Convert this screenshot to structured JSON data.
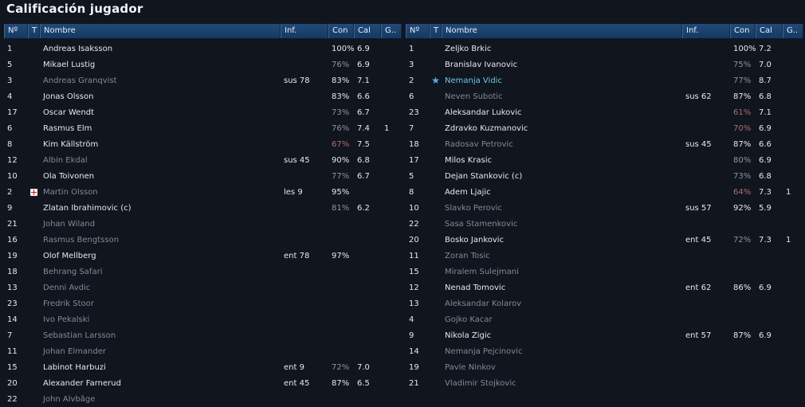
{
  "page": {
    "title": "Calificación jugador"
  },
  "columns": {
    "no": "Nº",
    "t": "T",
    "name": "Nombre",
    "inf": "Inf.",
    "con": "Con",
    "cal": "Cal",
    "g": "G.."
  },
  "colors": {
    "header": "#1c4170",
    "background": "#10151e",
    "active_text": "#e6e9ee",
    "inactive_text": "#838b97",
    "highlight_text": "#6fc7ef",
    "low_condition": "#b06e6e"
  },
  "left_team": {
    "players": [
      {
        "no": "1",
        "icon": "",
        "name": "Andreas Isaksson",
        "inf": "",
        "con": "100%",
        "con_level": "good",
        "cal": "6.9",
        "g": "",
        "active": true
      },
      {
        "no": "5",
        "icon": "",
        "name": "Mikael Lustig",
        "inf": "",
        "con": "76%",
        "con_level": "mid",
        "cal": "6.9",
        "g": "",
        "active": true
      },
      {
        "no": "3",
        "icon": "",
        "name": "Andreas Granqvist",
        "inf": "sus 78",
        "con": "83%",
        "con_level": "good",
        "cal": "7.1",
        "g": "",
        "active": false
      },
      {
        "no": "4",
        "icon": "",
        "name": "Jonas Olsson",
        "inf": "",
        "con": "83%",
        "con_level": "good",
        "cal": "6.6",
        "g": "",
        "active": true
      },
      {
        "no": "17",
        "icon": "",
        "name": "Oscar Wendt",
        "inf": "",
        "con": "73%",
        "con_level": "mid",
        "cal": "6.7",
        "g": "",
        "active": true
      },
      {
        "no": "6",
        "icon": "",
        "name": "Rasmus Elm",
        "inf": "",
        "con": "76%",
        "con_level": "mid",
        "cal": "7.4",
        "g": "1",
        "active": true
      },
      {
        "no": "8",
        "icon": "",
        "name": "Kim Källström",
        "inf": "",
        "con": "67%",
        "con_level": "low",
        "cal": "7.5",
        "g": "",
        "active": true
      },
      {
        "no": "12",
        "icon": "",
        "name": "Albin Ekdal",
        "inf": "sus 45",
        "con": "90%",
        "con_level": "good",
        "cal": "6.8",
        "g": "",
        "active": false
      },
      {
        "no": "10",
        "icon": "",
        "name": "Ola Toivonen",
        "inf": "",
        "con": "77%",
        "con_level": "mid",
        "cal": "6.7",
        "g": "",
        "active": true
      },
      {
        "no": "2",
        "icon": "injury-icon",
        "name": "Martin Olsson",
        "inf": "les 9",
        "con": "95%",
        "con_level": "good",
        "cal": "",
        "g": "",
        "active": false
      },
      {
        "no": "9",
        "icon": "",
        "name": "Zlatan Ibrahimovic (c)",
        "inf": "",
        "con": "81%",
        "con_level": "mid",
        "cal": "6.2",
        "g": "",
        "active": true
      },
      {
        "no": "21",
        "icon": "",
        "name": "Johan Wiland",
        "inf": "",
        "con": "",
        "con_level": "",
        "cal": "",
        "g": "",
        "active": false
      },
      {
        "no": "16",
        "icon": "",
        "name": "Rasmus Bengtsson",
        "inf": "",
        "con": "",
        "con_level": "",
        "cal": "",
        "g": "",
        "active": false
      },
      {
        "no": "19",
        "icon": "",
        "name": "Olof Mellberg",
        "inf": "ent 78",
        "con": "97%",
        "con_level": "good",
        "cal": "",
        "g": "",
        "active": true
      },
      {
        "no": "18",
        "icon": "",
        "name": "Behrang Safari",
        "inf": "",
        "con": "",
        "con_level": "",
        "cal": "",
        "g": "",
        "active": false
      },
      {
        "no": "13",
        "icon": "",
        "name": "Denni Avdic",
        "inf": "",
        "con": "",
        "con_level": "",
        "cal": "",
        "g": "",
        "active": false
      },
      {
        "no": "23",
        "icon": "",
        "name": "Fredrik Stoor",
        "inf": "",
        "con": "",
        "con_level": "",
        "cal": "",
        "g": "",
        "active": false
      },
      {
        "no": "14",
        "icon": "",
        "name": "Ivo Pekalski",
        "inf": "",
        "con": "",
        "con_level": "",
        "cal": "",
        "g": "",
        "active": false
      },
      {
        "no": "7",
        "icon": "",
        "name": "Sebastian Larsson",
        "inf": "",
        "con": "",
        "con_level": "",
        "cal": "",
        "g": "",
        "active": false
      },
      {
        "no": "11",
        "icon": "",
        "name": "Johan Elmander",
        "inf": "",
        "con": "",
        "con_level": "",
        "cal": "",
        "g": "",
        "active": false
      },
      {
        "no": "15",
        "icon": "",
        "name": "Labinot Harbuzi",
        "inf": "ent 9",
        "con": "72%",
        "con_level": "mid",
        "cal": "7.0",
        "g": "",
        "active": true
      },
      {
        "no": "20",
        "icon": "",
        "name": "Alexander Farnerud",
        "inf": "ent 45",
        "con": "87%",
        "con_level": "good",
        "cal": "6.5",
        "g": "",
        "active": true
      },
      {
        "no": "22",
        "icon": "",
        "name": "John Alvbåge",
        "inf": "",
        "con": "",
        "con_level": "",
        "cal": "",
        "g": "",
        "active": false
      }
    ]
  },
  "right_team": {
    "players": [
      {
        "no": "1",
        "icon": "",
        "name": "Zeljko Brkic",
        "inf": "",
        "con": "100%",
        "con_level": "good",
        "cal": "7.2",
        "g": "",
        "active": true
      },
      {
        "no": "3",
        "icon": "",
        "name": "Branislav Ivanovic",
        "inf": "",
        "con": "75%",
        "con_level": "mid",
        "cal": "7.0",
        "g": "",
        "active": true
      },
      {
        "no": "2",
        "icon": "star-icon",
        "name": "Nemanja Vidic",
        "inf": "",
        "con": "77%",
        "con_level": "mid",
        "cal": "8.7",
        "g": "",
        "active": true,
        "highlight": true
      },
      {
        "no": "6",
        "icon": "",
        "name": "Neven Subotic",
        "inf": "sus 62",
        "con": "87%",
        "con_level": "good",
        "cal": "6.8",
        "g": "",
        "active": false
      },
      {
        "no": "23",
        "icon": "",
        "name": "Aleksandar Lukovic",
        "inf": "",
        "con": "61%",
        "con_level": "low",
        "cal": "7.1",
        "g": "",
        "active": true
      },
      {
        "no": "7",
        "icon": "",
        "name": "Zdravko Kuzmanovic",
        "inf": "",
        "con": "70%",
        "con_level": "low",
        "cal": "6.9",
        "g": "",
        "active": true
      },
      {
        "no": "18",
        "icon": "",
        "name": "Radosav Petrovic",
        "inf": "sus 45",
        "con": "87%",
        "con_level": "good",
        "cal": "6.6",
        "g": "",
        "active": false
      },
      {
        "no": "17",
        "icon": "",
        "name": "Milos Krasic",
        "inf": "",
        "con": "80%",
        "con_level": "mid",
        "cal": "6.9",
        "g": "",
        "active": true
      },
      {
        "no": "5",
        "icon": "",
        "name": "Dejan Stankovic (c)",
        "inf": "",
        "con": "73%",
        "con_level": "mid",
        "cal": "6.8",
        "g": "",
        "active": true
      },
      {
        "no": "8",
        "icon": "",
        "name": "Adem Ljajic",
        "inf": "",
        "con": "64%",
        "con_level": "low",
        "cal": "7.3",
        "g": "1",
        "active": true
      },
      {
        "no": "10",
        "icon": "",
        "name": "Slavko Perovic",
        "inf": "sus 57",
        "con": "92%",
        "con_level": "good",
        "cal": "5.9",
        "g": "",
        "active": false
      },
      {
        "no": "22",
        "icon": "",
        "name": "Sasa Stamenkovic",
        "inf": "",
        "con": "",
        "con_level": "",
        "cal": "",
        "g": "",
        "active": false
      },
      {
        "no": "20",
        "icon": "",
        "name": "Bosko Jankovic",
        "inf": "ent 45",
        "con": "72%",
        "con_level": "mid",
        "cal": "7.3",
        "g": "1",
        "active": true
      },
      {
        "no": "11",
        "icon": "",
        "name": "Zoran Tosic",
        "inf": "",
        "con": "",
        "con_level": "",
        "cal": "",
        "g": "",
        "active": false
      },
      {
        "no": "15",
        "icon": "",
        "name": "Miralem Sulejmani",
        "inf": "",
        "con": "",
        "con_level": "",
        "cal": "",
        "g": "",
        "active": false
      },
      {
        "no": "12",
        "icon": "",
        "name": "Nenad Tomovic",
        "inf": "ent 62",
        "con": "86%",
        "con_level": "good",
        "cal": "6.9",
        "g": "",
        "active": true
      },
      {
        "no": "13",
        "icon": "",
        "name": "Aleksandar Kolarov",
        "inf": "",
        "con": "",
        "con_level": "",
        "cal": "",
        "g": "",
        "active": false
      },
      {
        "no": "4",
        "icon": "",
        "name": "Gojko Kacar",
        "inf": "",
        "con": "",
        "con_level": "",
        "cal": "",
        "g": "",
        "active": false
      },
      {
        "no": "9",
        "icon": "",
        "name": "Nikola Zigic",
        "inf": "ent 57",
        "con": "87%",
        "con_level": "good",
        "cal": "6.9",
        "g": "",
        "active": true
      },
      {
        "no": "14",
        "icon": "",
        "name": "Nemanja Pejcinovic",
        "inf": "",
        "con": "",
        "con_level": "",
        "cal": "",
        "g": "",
        "active": false
      },
      {
        "no": "19",
        "icon": "",
        "name": "Pavle Ninkov",
        "inf": "",
        "con": "",
        "con_level": "",
        "cal": "",
        "g": "",
        "active": false
      },
      {
        "no": "21",
        "icon": "",
        "name": "Vladimir Stojkovic",
        "inf": "",
        "con": "",
        "con_level": "",
        "cal": "",
        "g": "",
        "active": false
      }
    ]
  }
}
